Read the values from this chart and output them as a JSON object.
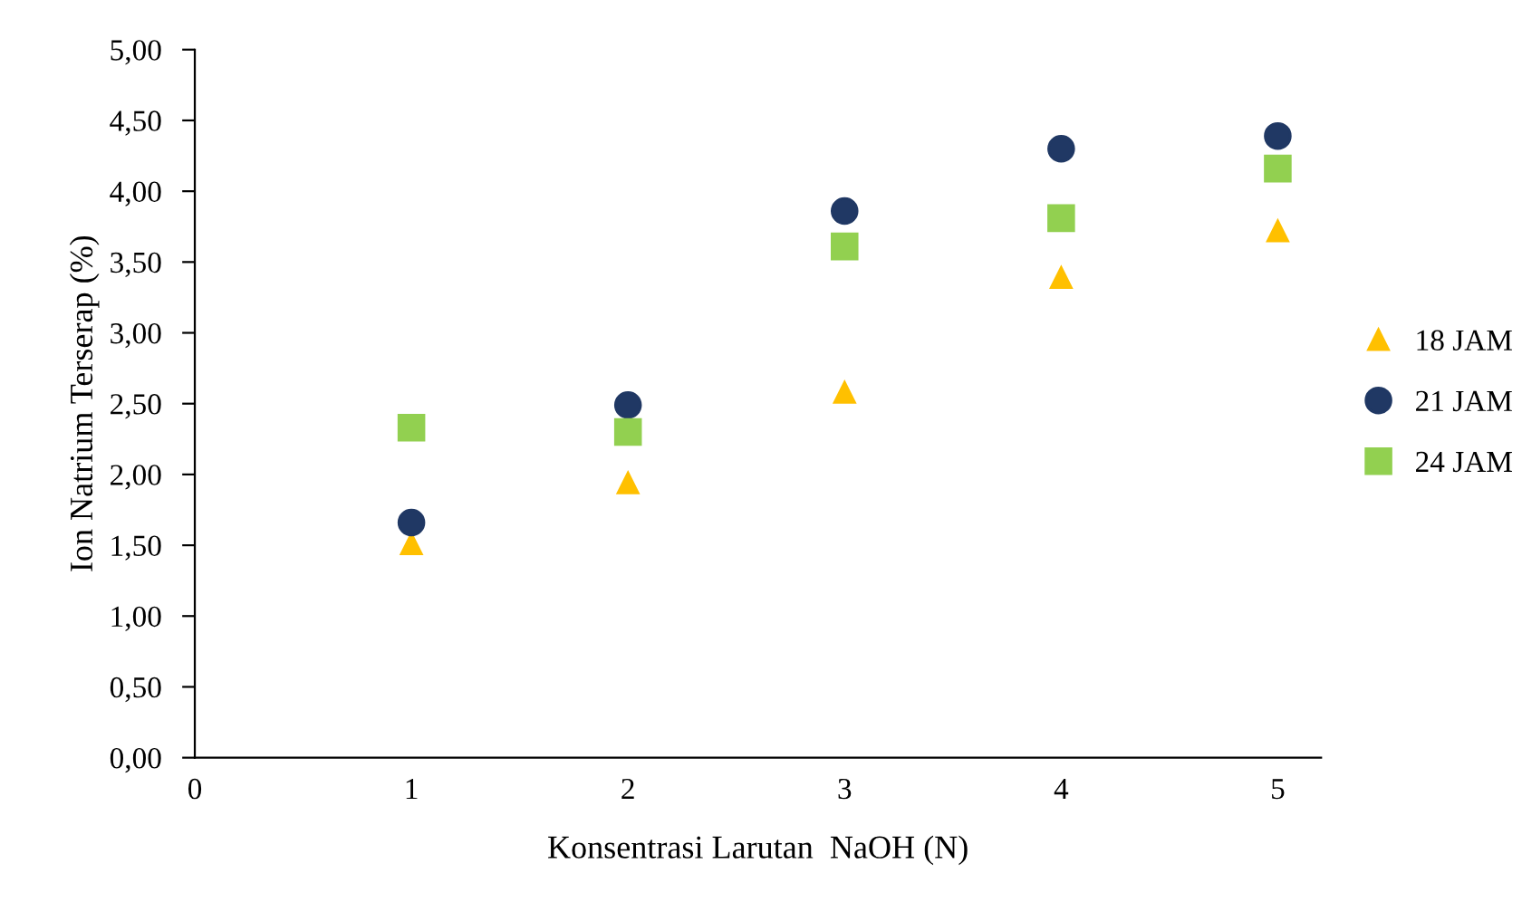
{
  "chart_data": {
    "type": "scatter",
    "xlabel": "Konsentrasi Larutan  NaOH (N)",
    "ylabel": "Ion Natrium Terserap (%)",
    "x": [
      1,
      2,
      3,
      4,
      5
    ],
    "series": [
      {
        "name": "18 JAM",
        "color": "#ffc000",
        "marker": "triangle",
        "values": [
          1.51,
          1.94,
          2.58,
          3.39,
          3.72
        ]
      },
      {
        "name": "21 JAM",
        "color": "#203864",
        "marker": "circle",
        "values": [
          1.66,
          2.49,
          3.86,
          4.3,
          4.39
        ]
      },
      {
        "name": "24 JAM",
        "color": "#92d050",
        "marker": "square",
        "values": [
          2.33,
          2.3,
          3.61,
          3.81,
          4.16
        ]
      }
    ],
    "xlim": [
      0,
      5.2
    ],
    "xticks": [
      0,
      1,
      2,
      3,
      4,
      5
    ],
    "ylim": [
      0,
      5
    ],
    "yticks": [
      {
        "value": 0,
        "label": "0,00"
      },
      {
        "value": 0.5,
        "label": "0,50"
      },
      {
        "value": 1,
        "label": "1,00"
      },
      {
        "value": 1.5,
        "label": "1,50"
      },
      {
        "value": 2,
        "label": "2,00"
      },
      {
        "value": 2.5,
        "label": "2,50"
      },
      {
        "value": 3,
        "label": "3,00"
      },
      {
        "value": 3.5,
        "label": "3,50"
      },
      {
        "value": 4,
        "label": "4,00"
      },
      {
        "value": 4.5,
        "label": "4,50"
      },
      {
        "value": 5,
        "label": "5,00"
      }
    ],
    "grid": false,
    "legend": "right"
  }
}
